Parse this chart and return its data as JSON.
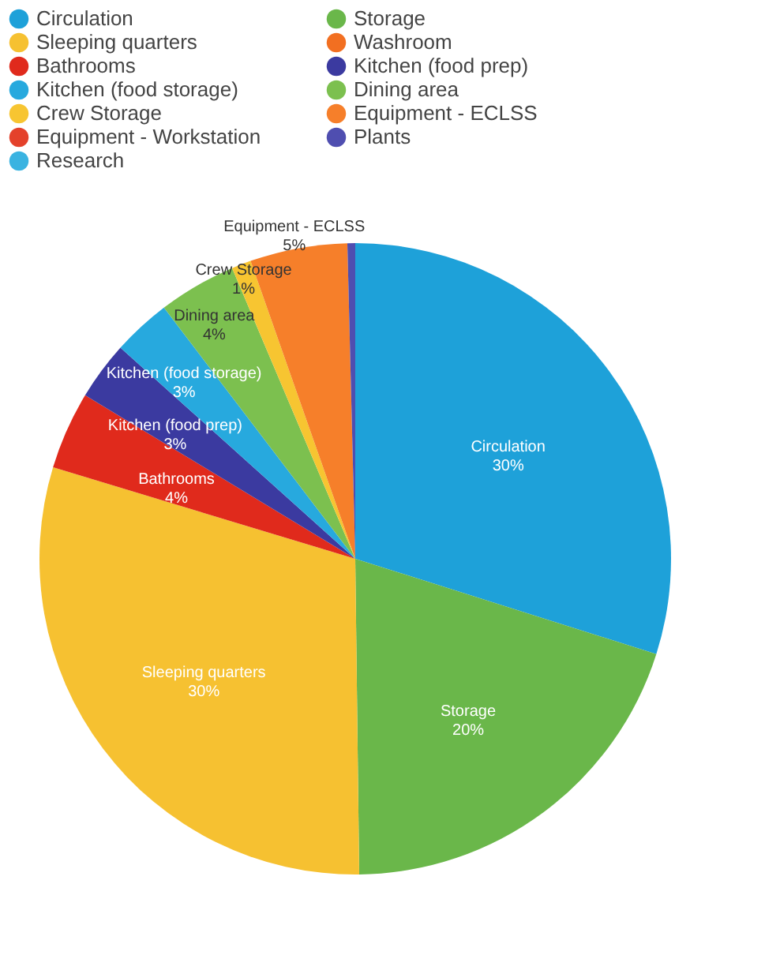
{
  "chart_data": {
    "type": "pie",
    "legend": "top",
    "categories": [
      "Circulation",
      "Storage",
      "Sleeping quarters",
      "Washroom",
      "Bathrooms",
      "Kitchen (food prep)",
      "Kitchen (food storage)",
      "Dining area",
      "Crew Storage",
      "Equipment - ECLSS",
      "Equipment - Workstation",
      "Plants",
      "Research"
    ],
    "values": [
      30,
      20,
      30,
      0,
      4,
      3,
      3,
      4,
      1,
      5,
      0,
      0.4,
      0
    ],
    "colors": [
      "#1ea1d9",
      "#6ab74a",
      "#f6c131",
      "#f26f21",
      "#e02a1c",
      "#3b3aa0",
      "#27a9de",
      "#7cc04f",
      "#f7c531",
      "#f67f2a",
      "#e4412b",
      "#4f4eb0",
      "#3ab3e1"
    ],
    "value_labels": [
      "30%",
      "20%",
      "30%",
      null,
      "4%",
      "3%",
      "3%",
      "4%",
      "1%",
      "5%",
      null,
      null,
      null
    ]
  }
}
